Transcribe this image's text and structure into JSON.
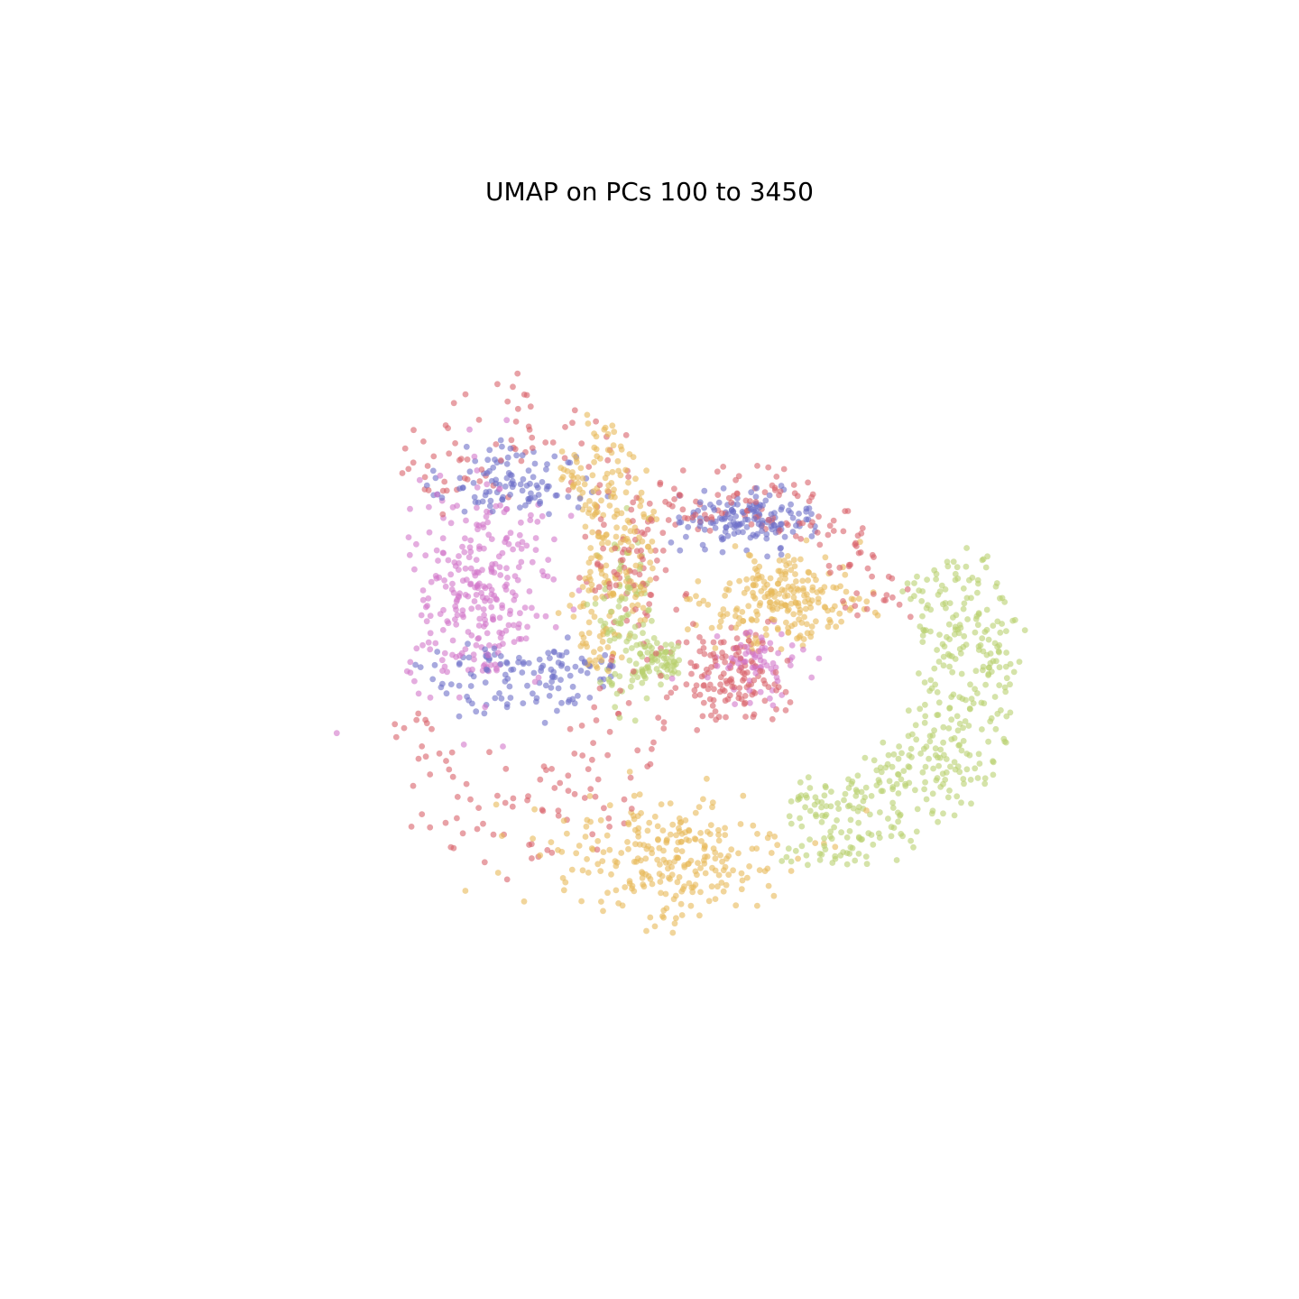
{
  "chart_data": {
    "type": "scatter",
    "title": "UMAP on PCs 100 to 3450",
    "xlabel": "",
    "ylabel": "",
    "axes_visible": false,
    "grid": false,
    "legend": "none",
    "xlim": [
      -6.2,
      6.2
    ],
    "ylim": [
      -5.4,
      4.8
    ],
    "point_alpha": 0.6,
    "groups": [
      {
        "color": "#d9626b",
        "clusters": [
          {
            "n": 230,
            "shape": "ring",
            "cx": -2.0,
            "cy": 0.0,
            "rx": 2.3,
            "ry": 3.2,
            "r0": 0.55,
            "r1": 1.0,
            "a0": -2.6,
            "a1": 2.4
          },
          {
            "n": 160,
            "shape": "arc",
            "cx": 1.0,
            "cy": 0.0,
            "rx": 2.3,
            "ry": 2.0,
            "r0": 0.62,
            "r1": 1.0,
            "a0": 0.1,
            "a1": 2.9
          },
          {
            "n": 130,
            "shape": "blob",
            "cx": 0.9,
            "cy": -0.7,
            "rx": 0.65,
            "ry": 0.55
          }
        ]
      },
      {
        "color": "#6e6fc8",
        "clusters": [
          {
            "n": 100,
            "shape": "arc",
            "cx": -2.1,
            "cy": 1.5,
            "rx": 1.2,
            "ry": 0.9,
            "r0": 0.1,
            "r1": 1.0,
            "a0": 0.0,
            "a1": 3.14
          },
          {
            "n": 120,
            "shape": "arc",
            "cx": -2.0,
            "cy": -0.3,
            "rx": 1.4,
            "ry": 1.0,
            "r0": 0.2,
            "r1": 1.0,
            "a0": 3.3,
            "a1": 6.1
          },
          {
            "n": 150,
            "shape": "blob",
            "cx": 1.1,
            "cy": 1.3,
            "rx": 0.85,
            "ry": 0.35
          }
        ]
      },
      {
        "color": "#d277c9",
        "clusters": [
          {
            "n": 280,
            "shape": "blob",
            "cx": -2.5,
            "cy": 0.4,
            "rx": 1.0,
            "ry": 1.3
          },
          {
            "n": 70,
            "shape": "blob",
            "cx": 1.2,
            "cy": -0.55,
            "rx": 0.55,
            "ry": 0.4
          }
        ]
      },
      {
        "color": "#e8b959",
        "clusters": [
          {
            "n": 260,
            "shape": "blob",
            "cx": 0.0,
            "cy": -3.0,
            "rx": 1.7,
            "ry": 0.85
          },
          {
            "n": 230,
            "shape": "arc",
            "cx": -1.7,
            "cy": 0.9,
            "rx": 1.7,
            "ry": 2.2,
            "r0": 0.4,
            "r1": 0.9,
            "a0": -1.1,
            "a1": 1.2
          },
          {
            "n": 220,
            "shape": "blob",
            "cx": 1.6,
            "cy": 0.25,
            "rx": 1.05,
            "ry": 0.55
          }
        ]
      },
      {
        "color": "#b9d16f",
        "clusters": [
          {
            "n": 430,
            "shape": "arc",
            "cx": 1.9,
            "cy": -0.6,
            "rx": 2.7,
            "ry": 2.4,
            "r0": 0.6,
            "r1": 1.05,
            "a0": -1.7,
            "a1": 0.75
          },
          {
            "n": 90,
            "shape": "blob",
            "cx": -0.6,
            "cy": 0.0,
            "rx": 0.35,
            "ry": 1.2
          },
          {
            "n": 70,
            "shape": "blob",
            "cx": -0.15,
            "cy": -0.5,
            "rx": 0.35,
            "ry": 0.25
          }
        ]
      }
    ]
  }
}
